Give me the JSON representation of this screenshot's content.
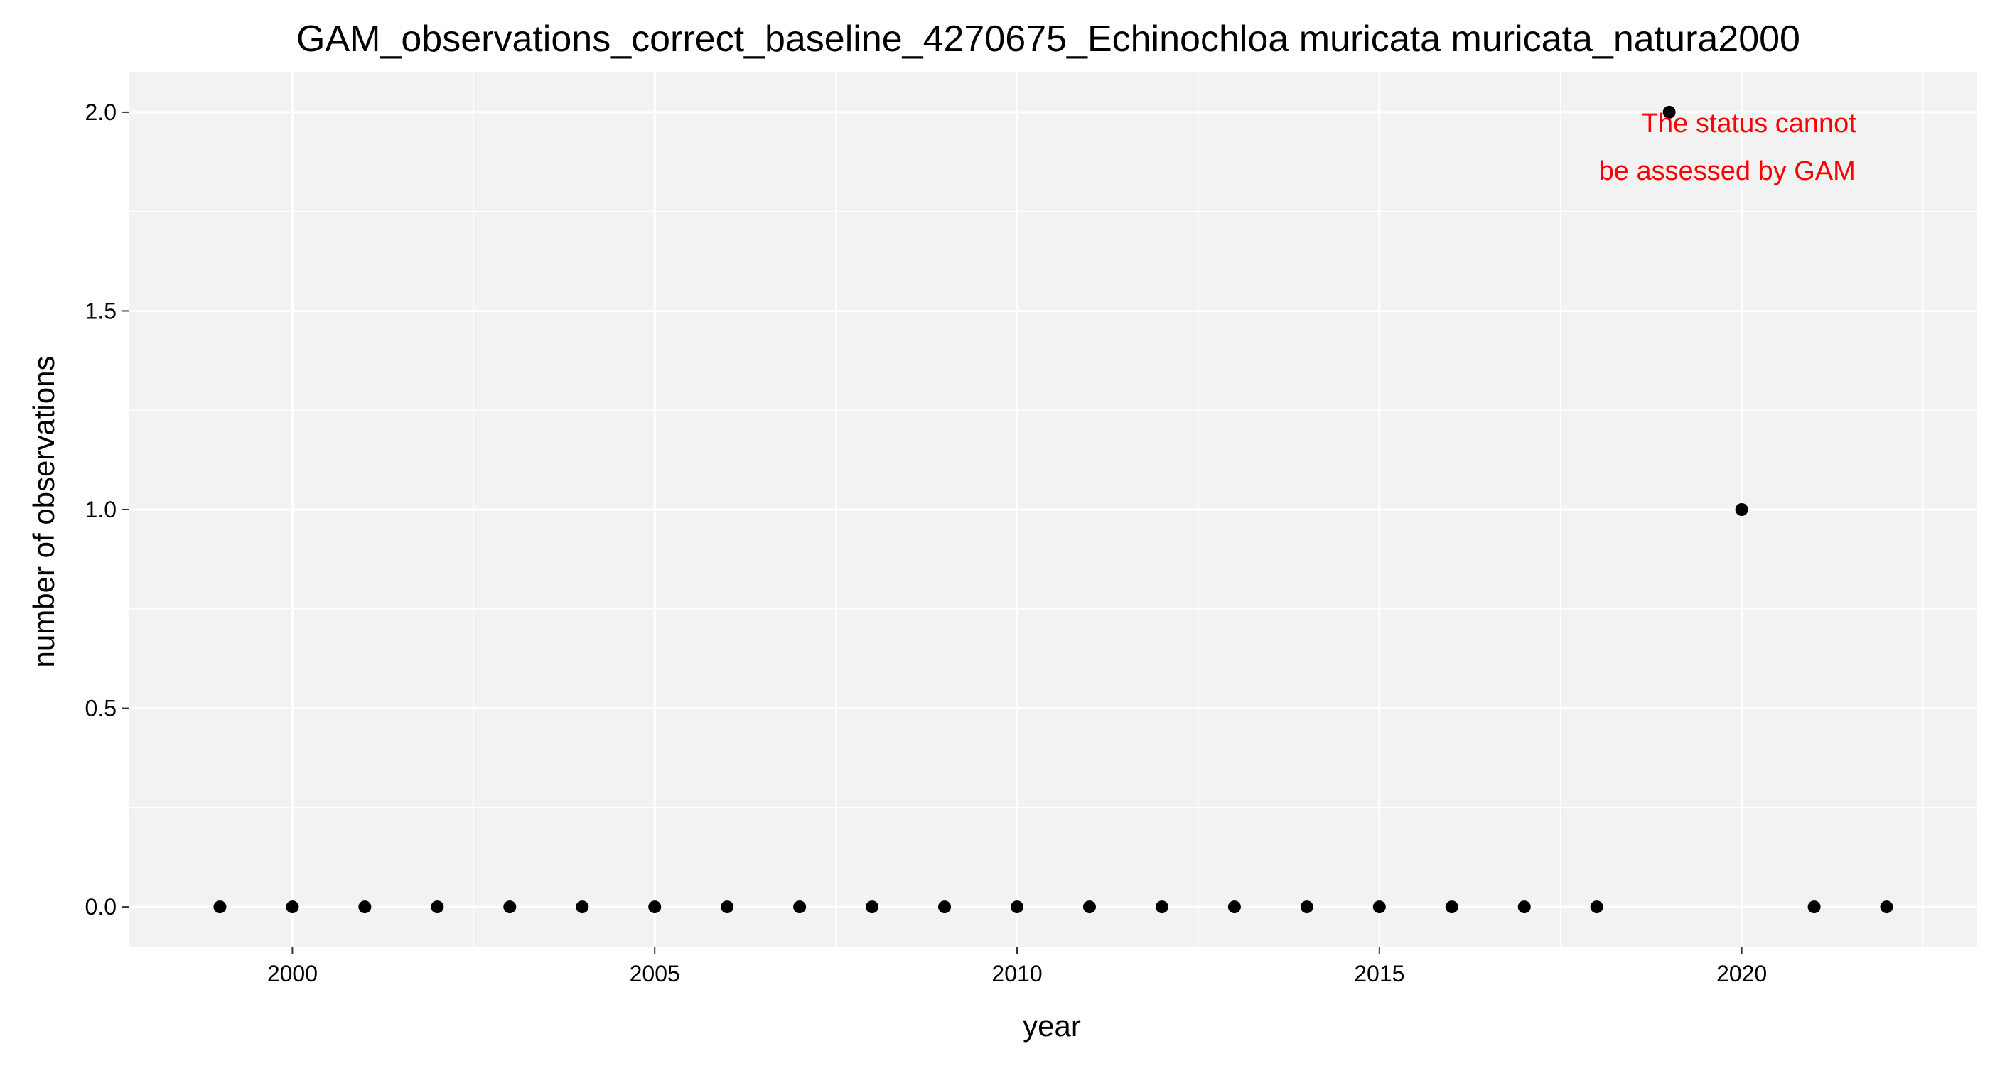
{
  "chart_data": {
    "type": "scatter",
    "title": "GAM_observations_correct_baseline_4270675_Echinochloa muricata muricata_natura2000",
    "xlabel": "year",
    "ylabel": "number of observations",
    "xlim": [
      1997.75,
      2023.25
    ],
    "ylim": [
      -0.1,
      2.1
    ],
    "x_ticks": [
      2000,
      2005,
      2010,
      2015,
      2020
    ],
    "x_tick_labels": [
      "2000",
      "2005",
      "2010",
      "2015",
      "2020"
    ],
    "x_minor_ticks": [
      1997.5,
      2002.5,
      2007.5,
      2012.5,
      2017.5,
      2022.5
    ],
    "y_ticks": [
      0,
      0.5,
      1,
      1.5,
      2
    ],
    "y_tick_labels": [
      "0.0",
      "0.5",
      "1.0",
      "1.5",
      "2.0"
    ],
    "y_minor_ticks": [
      0.25,
      0.75,
      1.25,
      1.75
    ],
    "grid": true,
    "legend": "none",
    "colors": {
      "panel_background": "#f2f2f2",
      "grid": "#ffffff",
      "point": "#000000",
      "annotation": "#ff0000"
    },
    "series": [
      {
        "x": [
          1999,
          2000,
          2001,
          2002,
          2003,
          2004,
          2005,
          2006,
          2007,
          2008,
          2009,
          2010,
          2011,
          2012,
          2013,
          2014,
          2015,
          2016,
          2017,
          2018,
          2019,
          2020,
          2021,
          2022
        ],
        "y": [
          0,
          0,
          0,
          0,
          0,
          0,
          0,
          0,
          0,
          0,
          0,
          0,
          0,
          0,
          0,
          0,
          0,
          0,
          0,
          0,
          2,
          1,
          0,
          0
        ]
      }
    ],
    "annotations": [
      {
        "text": "The status cannot",
        "x": 2020.1,
        "y": 1.95
      },
      {
        "text": "be assessed by GAM",
        "x": 2019.8,
        "y": 1.83
      }
    ]
  }
}
